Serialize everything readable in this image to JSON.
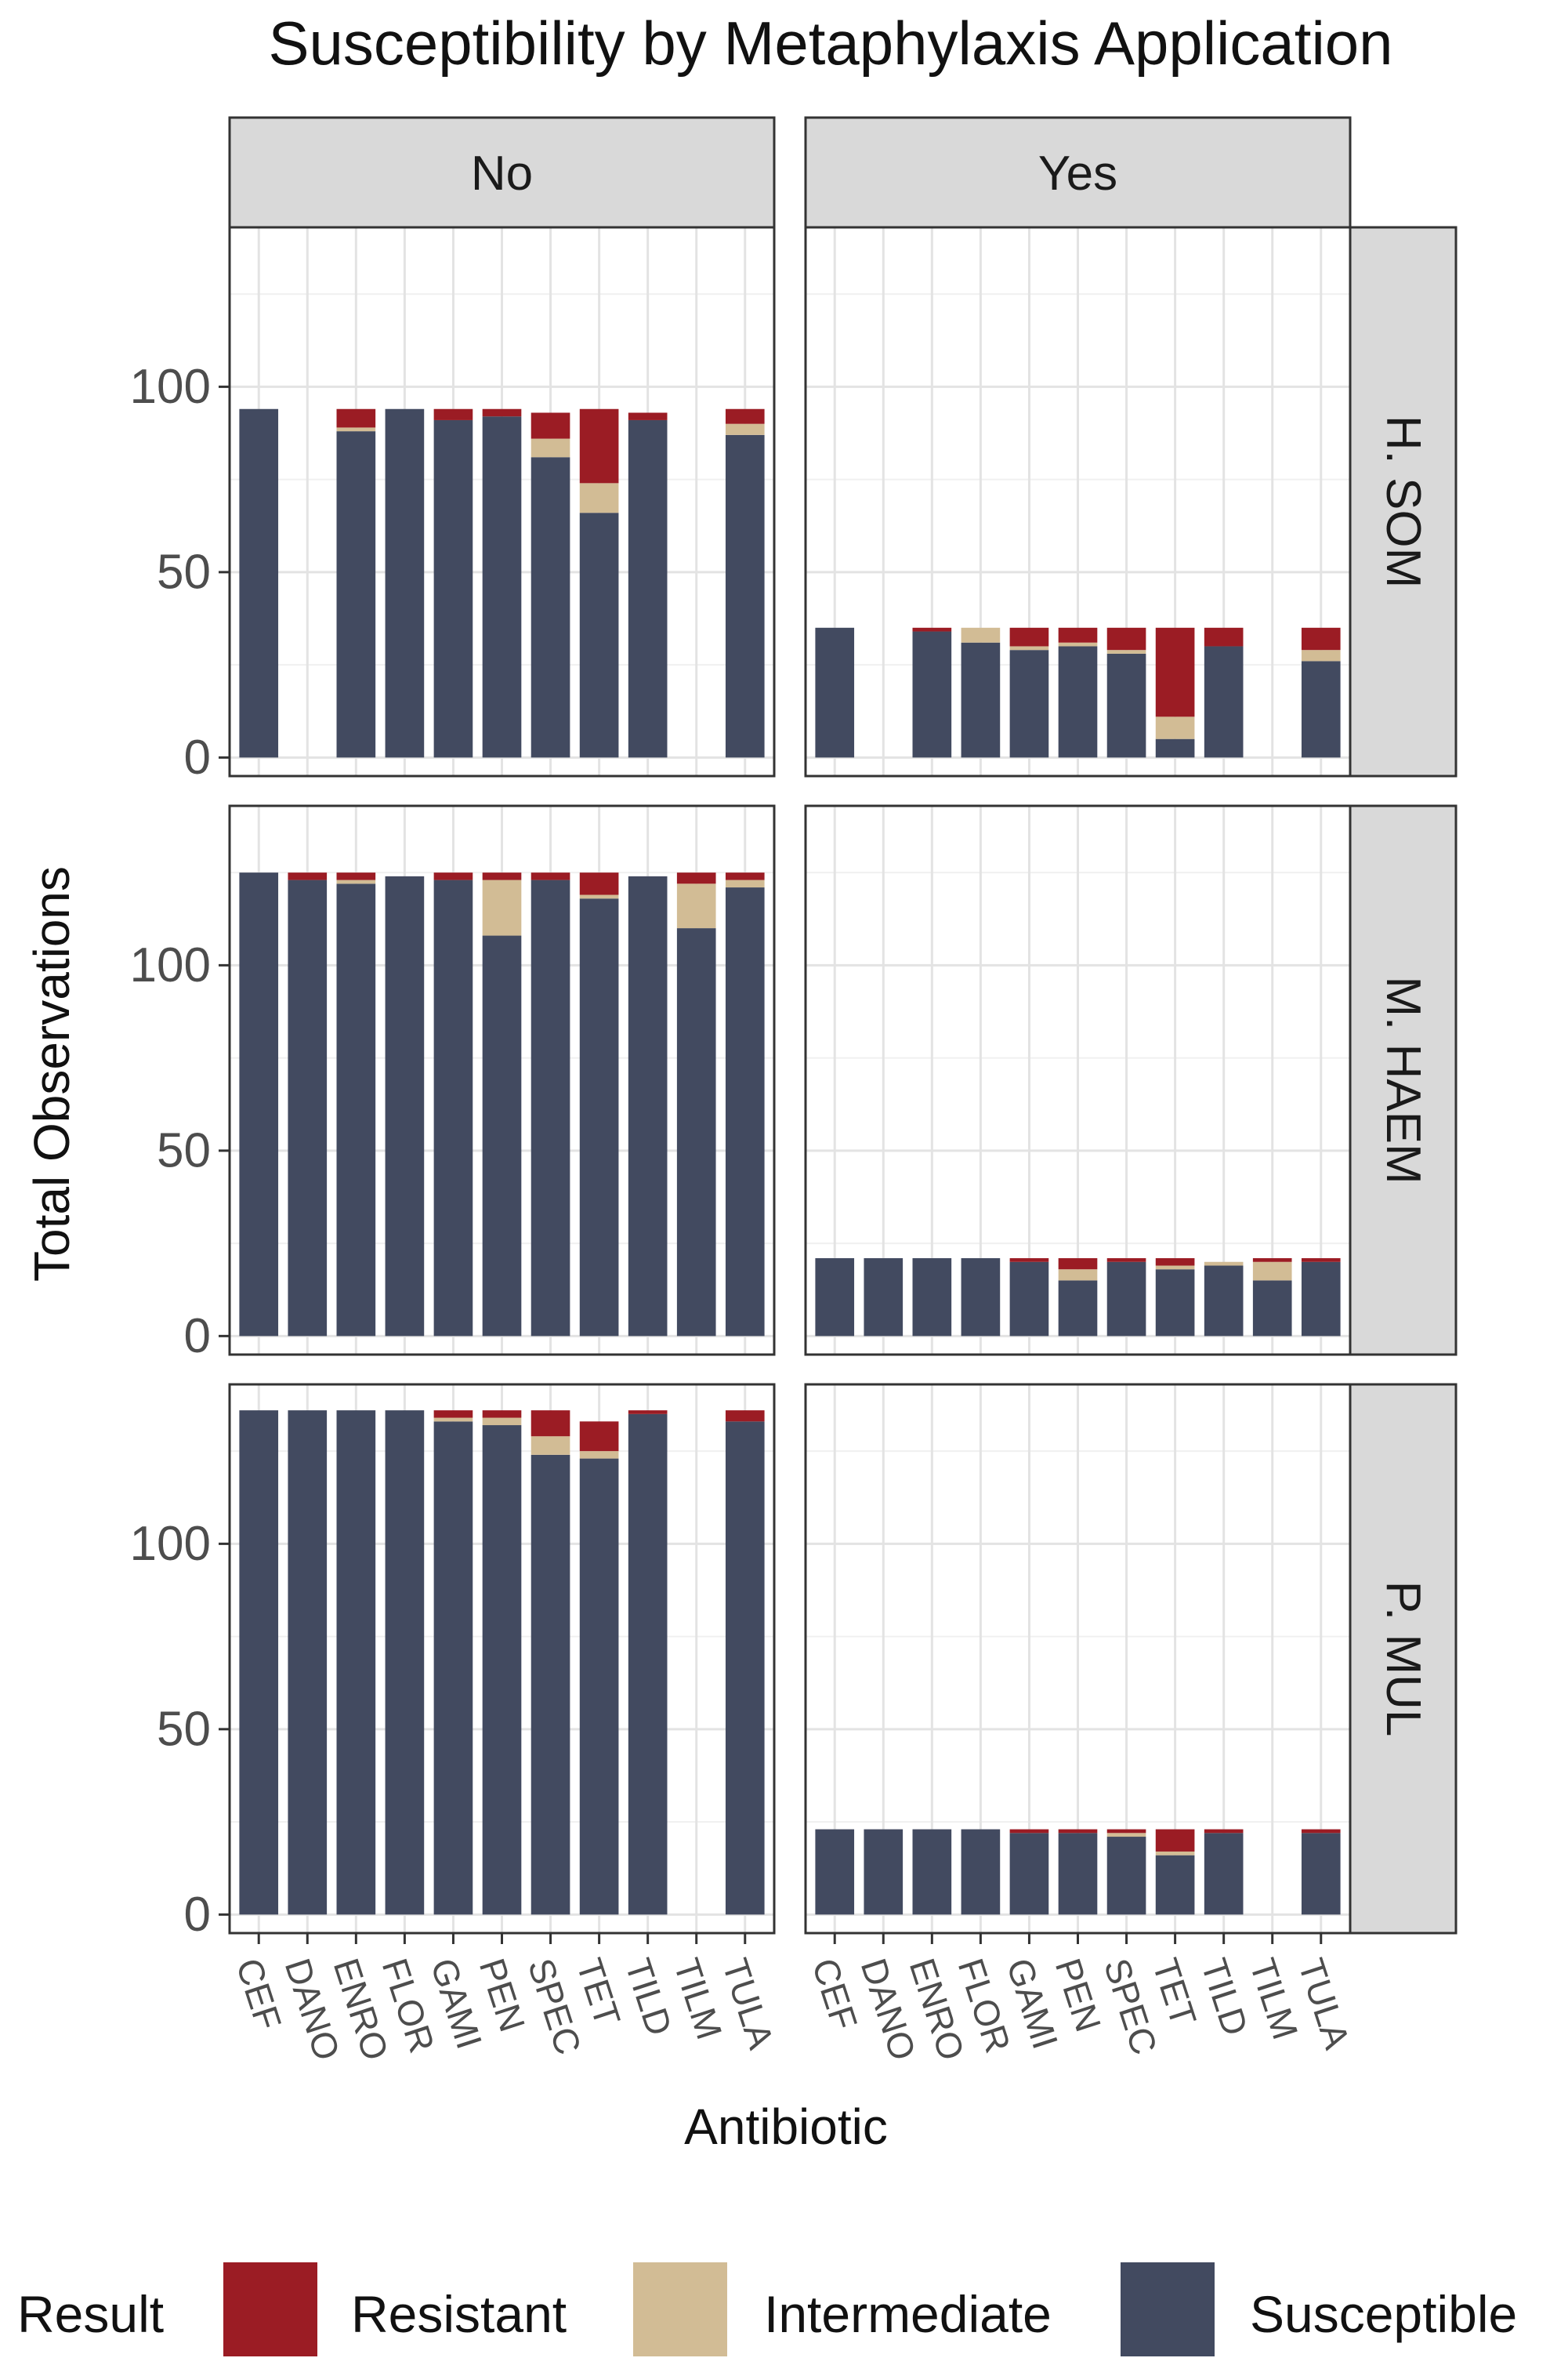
{
  "chart_data": {
    "type": "bar",
    "stacked": true,
    "title": "Susceptibility by Metaphylaxis Application",
    "xlabel": "Antibiotic",
    "ylabel": "Total Observations",
    "categories": [
      "CEF",
      "DANO",
      "ENRO",
      "FLOR",
      "GAMI",
      "PEN",
      "SPEC",
      "TET",
      "TILD",
      "TILM",
      "TULA"
    ],
    "facet_columns": [
      "No",
      "Yes"
    ],
    "facet_rows": [
      "H. SOM",
      "M. HAEM",
      "P. MUL"
    ],
    "y_ticks": [
      0,
      50,
      100
    ],
    "ylim": [
      -5,
      143
    ],
    "grid": true,
    "legend": {
      "title": "Result",
      "position": "bottom",
      "entries": [
        {
          "name": "Resistant",
          "color": "#9b1c24"
        },
        {
          "name": "Intermediate",
          "color": "#d2bc95"
        },
        {
          "name": "Susceptible",
          "color": "#424a60"
        }
      ]
    },
    "series_order": [
      "Susceptible",
      "Intermediate",
      "Resistant"
    ],
    "colors": {
      "Susceptible": "#424a60",
      "Intermediate": "#d2bc95",
      "Resistant": "#9b1c24"
    },
    "panels": [
      {
        "row": "H. SOM",
        "col": "No",
        "series": {
          "Susceptible": [
            94,
            0,
            88,
            94,
            91,
            92,
            81,
            66,
            91,
            0,
            87
          ],
          "Intermediate": [
            0,
            0,
            1,
            0,
            0,
            0,
            5,
            8,
            0,
            0,
            3
          ],
          "Resistant": [
            0,
            0,
            5,
            0,
            3,
            2,
            7,
            20,
            2,
            0,
            4
          ]
        }
      },
      {
        "row": "H. SOM",
        "col": "Yes",
        "series": {
          "Susceptible": [
            35,
            0,
            34,
            31,
            29,
            30,
            28,
            5,
            30,
            0,
            26
          ],
          "Intermediate": [
            0,
            0,
            0,
            4,
            1,
            1,
            1,
            6,
            0,
            0,
            3
          ],
          "Resistant": [
            0,
            0,
            1,
            0,
            5,
            4,
            6,
            24,
            5,
            0,
            6
          ]
        }
      },
      {
        "row": "M. HAEM",
        "col": "No",
        "series": {
          "Susceptible": [
            125,
            123,
            122,
            124,
            123,
            108,
            123,
            118,
            124,
            110,
            121
          ],
          "Intermediate": [
            0,
            0,
            1,
            0,
            0,
            15,
            0,
            1,
            0,
            12,
            2
          ],
          "Resistant": [
            0,
            2,
            2,
            0,
            2,
            2,
            2,
            6,
            0,
            3,
            2
          ]
        }
      },
      {
        "row": "M. HAEM",
        "col": "Yes",
        "series": {
          "Susceptible": [
            21,
            21,
            21,
            21,
            20,
            15,
            20,
            18,
            19,
            15,
            20
          ],
          "Intermediate": [
            0,
            0,
            0,
            0,
            0,
            3,
            0,
            1,
            1,
            5,
            0
          ],
          "Resistant": [
            0,
            0,
            0,
            0,
            1,
            3,
            1,
            2,
            0,
            1,
            1
          ]
        }
      },
      {
        "row": "P. MUL",
        "col": "No",
        "series": {
          "Susceptible": [
            136,
            136,
            136,
            136,
            133,
            132,
            124,
            123,
            135,
            0,
            133
          ],
          "Intermediate": [
            0,
            0,
            0,
            0,
            1,
            2,
            5,
            2,
            0,
            0,
            0
          ],
          "Resistant": [
            0,
            0,
            0,
            0,
            2,
            2,
            7,
            8,
            1,
            0,
            3
          ]
        }
      },
      {
        "row": "P. MUL",
        "col": "Yes",
        "series": {
          "Susceptible": [
            23,
            23,
            23,
            23,
            22,
            22,
            21,
            16,
            22,
            0,
            22
          ],
          "Intermediate": [
            0,
            0,
            0,
            0,
            0,
            0,
            1,
            1,
            0,
            0,
            0
          ],
          "Resistant": [
            0,
            0,
            0,
            0,
            1,
            1,
            1,
            6,
            1,
            0,
            1
          ]
        }
      }
    ]
  }
}
